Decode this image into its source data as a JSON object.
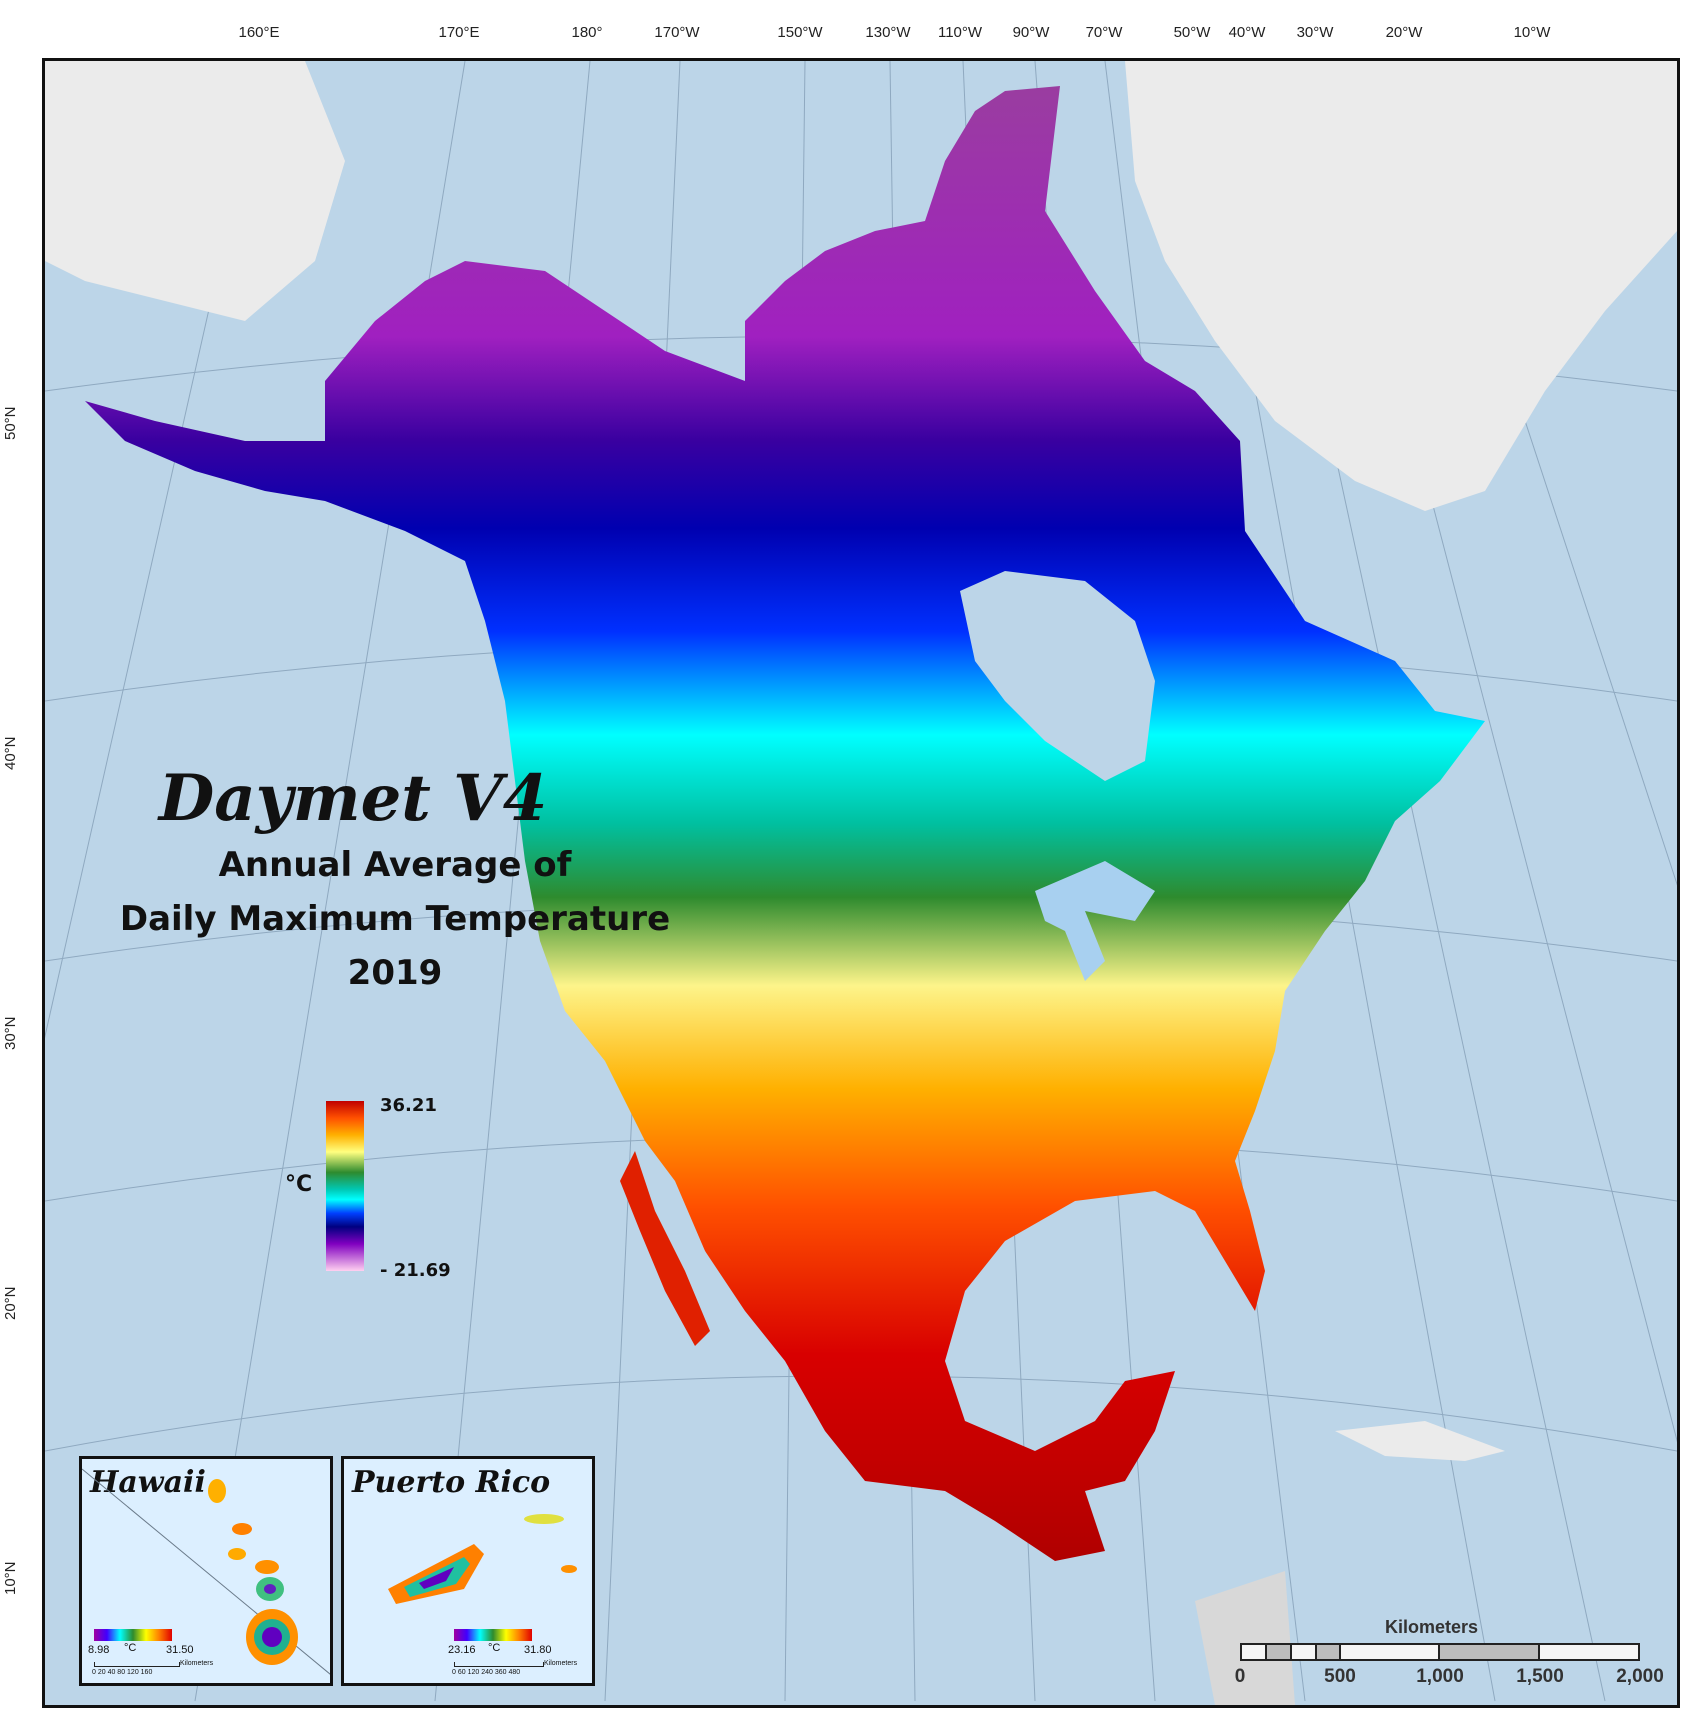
{
  "title": {
    "main": "Daymet V4",
    "line1": "Annual Average of",
    "line2": "Daily Maximum Temperature",
    "year": "2019"
  },
  "graticule": {
    "longitudes": [
      "160°E",
      "170°E",
      "180°",
      "170°W",
      "150°W",
      "130°W",
      "110°W",
      "90°W",
      "70°W",
      "50°W",
      "40°W",
      "30°W",
      "20°W",
      "10°W"
    ],
    "latitudes": [
      "50°N",
      "40°N",
      "30°N",
      "20°N",
      "10°N"
    ]
  },
  "legend": {
    "unit": "°C",
    "max": "36.21",
    "min": "- 21.69"
  },
  "insets": {
    "hawaii": {
      "title": "Hawaii",
      "min": "8.98",
      "unit": "°C",
      "max": "31.50",
      "scale": "0  20  40     80    120    160",
      "scale_unit": "Kilometers"
    },
    "puerto_rico": {
      "title": "Puerto Rico",
      "min": "23.16",
      "unit": "°C",
      "max": "31.80",
      "scale": "0  60 120    240    360    480",
      "scale_unit": "Kilometers"
    }
  },
  "scale_bar": {
    "title": "Kilometers",
    "labels": [
      "0",
      "500",
      "1,000",
      "1,500",
      "2,000"
    ]
  },
  "colors": {
    "ocean": "#bcd5e8",
    "land_other": "#ebebeb",
    "hot": "#c00000",
    "cold": "#8000c0"
  }
}
